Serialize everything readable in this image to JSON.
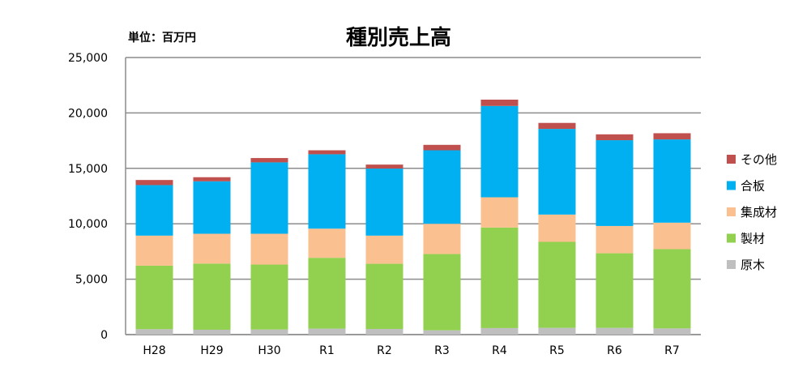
{
  "chart_data": {
    "type": "bar",
    "stacked": true,
    "title": "種別売上高",
    "unit_label": "単位：百万円",
    "xlabel": "",
    "ylabel": "",
    "ylim": [
      0,
      25000
    ],
    "yticks": [
      0,
      5000,
      10000,
      15000,
      20000,
      25000
    ],
    "ytick_labels": [
      "0",
      "5,000",
      "10,000",
      "15,000",
      "20,000",
      "25,000"
    ],
    "grid": true,
    "legend_position": "right",
    "categories": [
      "H28",
      "H29",
      "H30",
      "R1",
      "R2",
      "R3",
      "R4",
      "R5",
      "R6",
      "R7"
    ],
    "series": [
      {
        "name": "原木",
        "color": "#bfbfbf",
        "values": [
          490,
          440,
          460,
          540,
          510,
          390,
          590,
          610,
          610,
          560
        ]
      },
      {
        "name": "製材",
        "color": "#92d050",
        "values": [
          5730,
          5970,
          5860,
          6390,
          5880,
          6880,
          9070,
          7760,
          6730,
          7150
        ]
      },
      {
        "name": "集成材",
        "color": "#fac090",
        "values": [
          2710,
          2690,
          2780,
          2630,
          2540,
          2730,
          2730,
          2460,
          2460,
          2390
        ]
      },
      {
        "name": "合板",
        "color": "#00b0f0",
        "values": [
          4560,
          4730,
          6440,
          6710,
          6050,
          6630,
          8240,
          7730,
          7740,
          7510
        ]
      },
      {
        "name": "その他",
        "color": "#c0504d",
        "values": [
          460,
          370,
          390,
          360,
          360,
          490,
          570,
          540,
          530,
          560
        ]
      }
    ]
  }
}
